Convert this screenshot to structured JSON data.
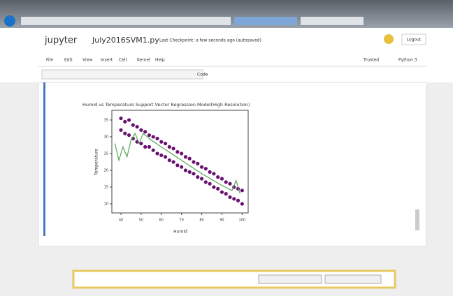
{
  "header": {
    "logo": "jupyter",
    "notebook_name": "July2016SVM1.py",
    "checkpoint": "Last Checkpoint: a few seconds ago (autosaved)",
    "logout": "Logout"
  },
  "menu": {
    "items": [
      "File",
      "Edit",
      "View",
      "Insert",
      "Cell",
      "Kernel",
      "Help"
    ],
    "trusted": "Trusted",
    "kernel": "Python 3"
  },
  "toolbar": {
    "cell_type": "Code"
  },
  "chart_data": {
    "type": "scatter",
    "title": "Humid vs Temperature Support Vector Regression Model(High Resolution)",
    "x_label": "Humid",
    "y_label": "Temperature",
    "xlim": [
      35.5,
      103
    ],
    "ylim": [
      7.3,
      37.9
    ],
    "xticks": [
      40,
      50,
      60,
      70,
      80,
      90,
      100
    ],
    "yticks": [
      10,
      15,
      20,
      25,
      30,
      35
    ],
    "series": [
      {
        "type": "scatter",
        "color": "#6a1070",
        "x": [
          40,
          40,
          42,
          42,
          44,
          44,
          46,
          46,
          48,
          48,
          50,
          50,
          52,
          52,
          54,
          54,
          56,
          56,
          58,
          58,
          60,
          60,
          62,
          62,
          64,
          64,
          66,
          66,
          68,
          68,
          70,
          70,
          72,
          72,
          74,
          74,
          76,
          76,
          78,
          78,
          80,
          80,
          82,
          82,
          84,
          84,
          86,
          86,
          88,
          88,
          90,
          90,
          92,
          92,
          94,
          94,
          96,
          96,
          98,
          98,
          100,
          100
        ],
        "values": [
          35.5,
          32,
          34.5,
          31,
          35,
          30.5,
          33.5,
          29.5,
          33,
          28.5,
          32,
          28,
          31.5,
          27,
          30.5,
          27,
          30,
          26,
          29.5,
          25,
          28.5,
          24.5,
          28,
          24,
          27,
          23,
          26.5,
          22.5,
          25.5,
          21.5,
          25,
          21,
          24,
          20,
          23.5,
          19.5,
          22.5,
          19,
          22,
          18,
          21,
          17.5,
          20.5,
          16.5,
          19.5,
          16,
          19,
          15,
          18,
          14.5,
          17.5,
          13.5,
          16.5,
          13,
          16,
          12,
          15,
          11.5,
          14.5,
          11,
          14,
          10
        ]
      },
      {
        "type": "line",
        "color": "#5aa55a",
        "x": [
          37,
          39,
          41,
          43,
          45,
          47,
          49,
          51,
          53,
          55,
          60,
          70,
          80,
          90,
          95,
          97,
          99
        ],
        "values": [
          28,
          23,
          27,
          24,
          29,
          31,
          28,
          31,
          30,
          29,
          27,
          23,
          19,
          15.5,
          14,
          17,
          13
        ]
      }
    ]
  }
}
